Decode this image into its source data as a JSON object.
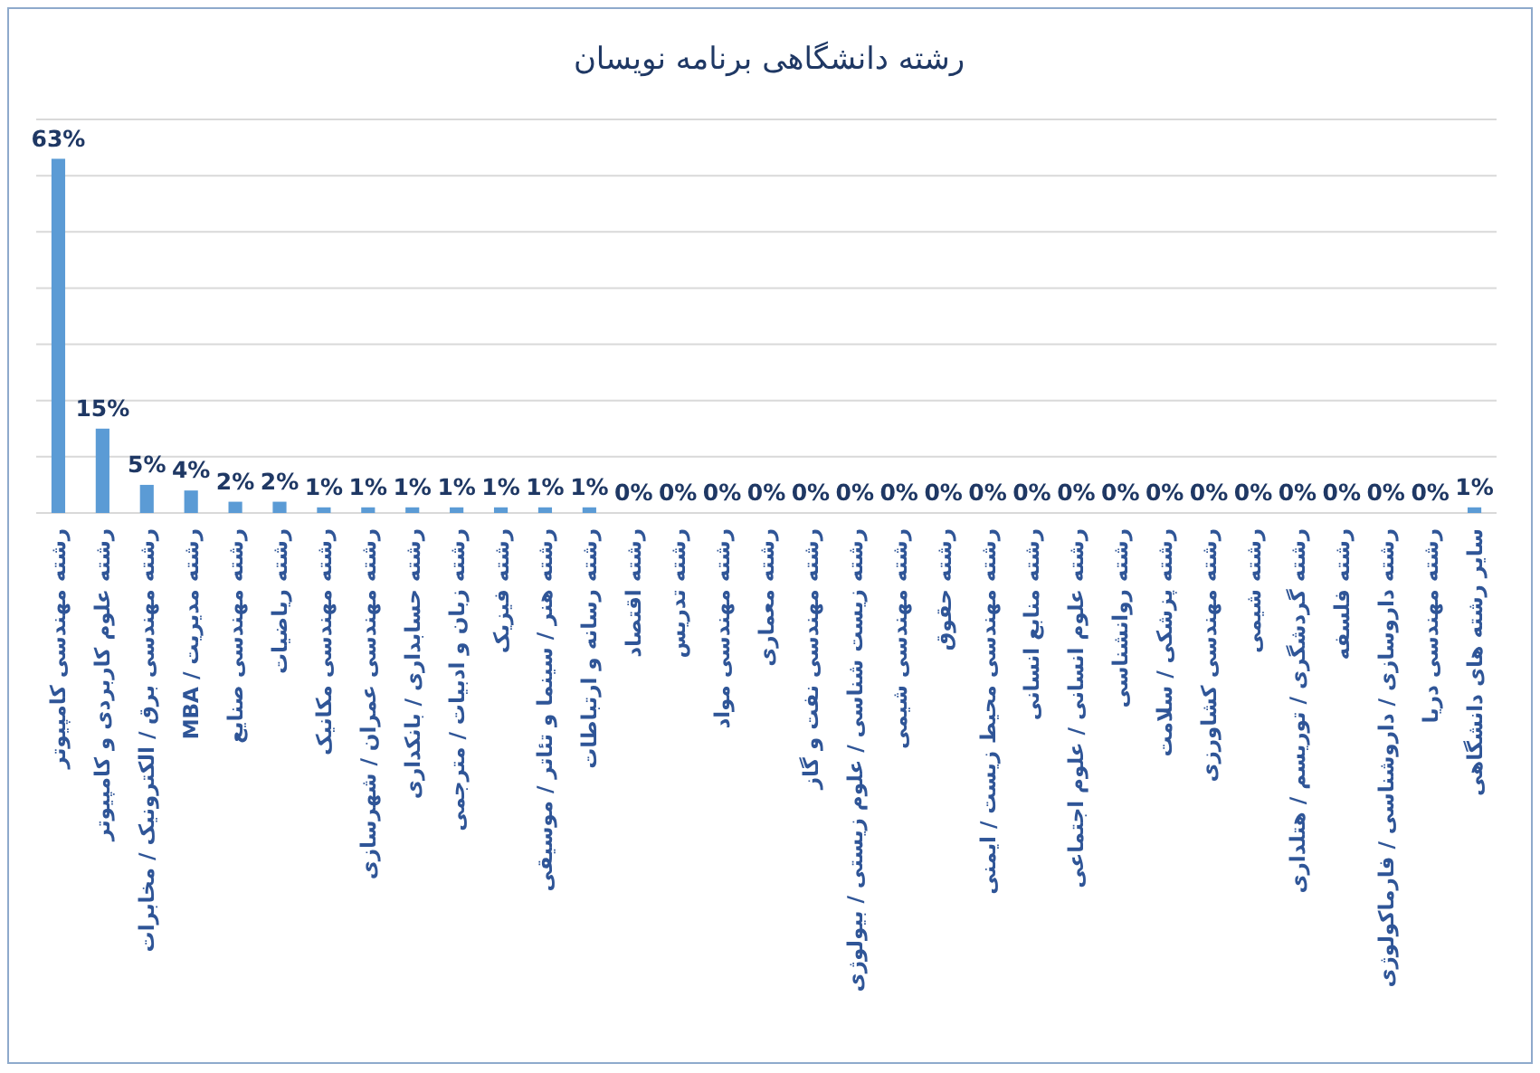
{
  "chart_data": {
    "type": "bar",
    "title": "رشته دانشگاهی برنامه نویسان",
    "categories": [
      "رشته مهندسی کامپیوتر",
      "رشته علوم کاربردی و کامپیوتر",
      "رشته مهندسی برق / الکترونیک / مخابرات",
      "رشته مدیریت / MBA",
      "رشته مهندسی صنایع",
      "رشته ریاضیات",
      "رشته مهندسی مکانیک",
      "رشته مهندسی عمران / شهرسازی",
      "رشته حسابداری / بانکداری",
      "رشته زبان و ادبیات / مترجمی",
      "رشته فیزیک",
      "رشته هنر / سینما و تئاتر / موسیقی",
      "رشته رسانه و ارتباطات",
      "رشته اقتصاد",
      "رشته تدریس",
      "رشته مهندسی مواد",
      "رشته معماری",
      "رشته مهندسی نفت و گاز",
      "رشته زیست شناسی / علوم زیستی / بیولوژی",
      "رشته مهندسی شیمی",
      "رشته حقوق",
      "رشته مهندسی محیط زیست / ایمنی",
      "رشته منابع انسانی",
      "رشته علوم انسانی / علوم اجتماعی",
      "رشته روانشناسی",
      "رشته پزشکی / سلامت",
      "رشته مهندسی کشاورزی",
      "رشته شیمی",
      "رشته گردشگری / توریسم / هتلداری",
      "رشته فلسفه",
      "رشته داروسازی / داروشناسی / فارماکولوژی",
      "رشته مهندسی دریا",
      "سایر رشته های دانشگاهی"
    ],
    "values": [
      63,
      15,
      5,
      4,
      2,
      2,
      1,
      1,
      1,
      1,
      1,
      1,
      1,
      0,
      0,
      0,
      0,
      0,
      0,
      0,
      0,
      0,
      0,
      0,
      0,
      0,
      0,
      0,
      0,
      0,
      0,
      0,
      1
    ],
    "value_labels": [
      "63%",
      "15%",
      "5%",
      "4%",
      "2%",
      "2%",
      "1%",
      "1%",
      "1%",
      "1%",
      "1%",
      "1%",
      "1%",
      "0%",
      "0%",
      "0%",
      "0%",
      "0%",
      "0%",
      "0%",
      "0%",
      "0%",
      "0%",
      "0%",
      "0%",
      "0%",
      "0%",
      "0%",
      "0%",
      "0%",
      "0%",
      "0%",
      "1%"
    ],
    "color": "#5b9bd5",
    "ylim": [
      0,
      70
    ],
    "yticks": [
      {
        "value": 0,
        "label": null
      },
      {
        "value": 10,
        "label": null
      },
      {
        "value": 20,
        "label": null
      },
      {
        "value": 30,
        "label": null
      },
      {
        "value": 40,
        "label": null
      },
      {
        "value": 50,
        "label": null
      },
      {
        "value": 60,
        "label": null
      },
      {
        "value": 70,
        "label": null
      }
    ],
    "grid": "y",
    "tick_labels": "x"
  }
}
